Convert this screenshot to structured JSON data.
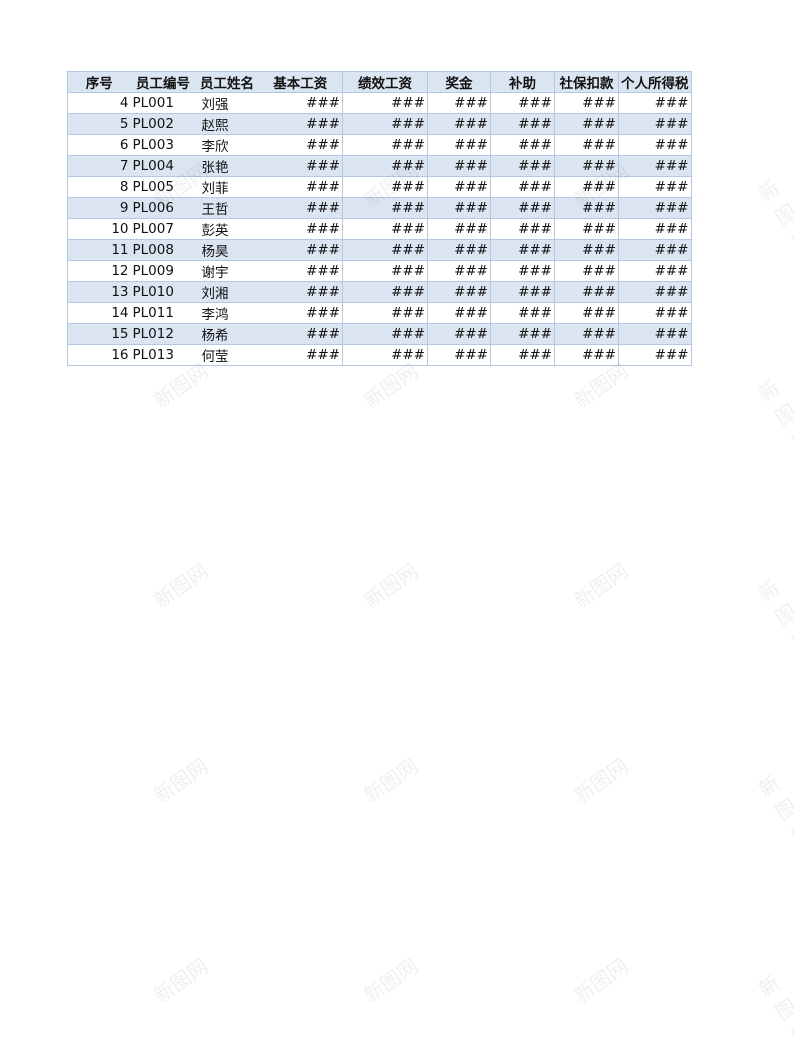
{
  "headers": [
    "序号",
    "员工编号",
    "员工姓名",
    "基本工资",
    "绩效工资",
    "奖金",
    "补助",
    "社保扣款",
    "个人所得税"
  ],
  "rows": [
    [
      "4",
      "PL001",
      "刘强",
      "###",
      "###",
      "###",
      "###",
      "###",
      "###"
    ],
    [
      "5",
      "PL002",
      "赵熙",
      "###",
      "###",
      "###",
      "###",
      "###",
      "###"
    ],
    [
      "6",
      "PL003",
      "李欣",
      "###",
      "###",
      "###",
      "###",
      "###",
      "###"
    ],
    [
      "7",
      "PL004",
      "张艳",
      "###",
      "###",
      "###",
      "###",
      "###",
      "###"
    ],
    [
      "8",
      "PL005",
      "刘菲",
      "###",
      "###",
      "###",
      "###",
      "###",
      "###"
    ],
    [
      "9",
      "PL006",
      "王哲",
      "###",
      "###",
      "###",
      "###",
      "###",
      "###"
    ],
    [
      "10",
      "PL007",
      "彭英",
      "###",
      "###",
      "###",
      "###",
      "###",
      "###"
    ],
    [
      "11",
      "PL008",
      "杨昊",
      "###",
      "###",
      "###",
      "###",
      "###",
      "###"
    ],
    [
      "12",
      "PL009",
      "谢宇",
      "###",
      "###",
      "###",
      "###",
      "###",
      "###"
    ],
    [
      "13",
      "PL010",
      "刘湘",
      "###",
      "###",
      "###",
      "###",
      "###",
      "###"
    ],
    [
      "14",
      "PL011",
      "李鸿",
      "###",
      "###",
      "###",
      "###",
      "###",
      "###"
    ],
    [
      "15",
      "PL012",
      "杨希",
      "###",
      "###",
      "###",
      "###",
      "###",
      "###"
    ],
    [
      "16",
      "PL013",
      "何莹",
      "###",
      "###",
      "###",
      "###",
      "###",
      "###"
    ]
  ],
  "watermark": "新图网",
  "colors": {
    "header_bg": "#dbe5f1",
    "border": "#b6c7e0"
  }
}
